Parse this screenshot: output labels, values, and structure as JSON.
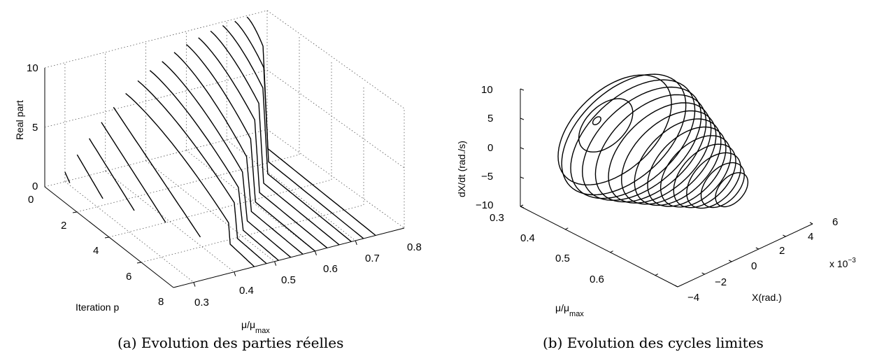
{
  "chart_data": [
    {
      "type": "line",
      "subtype": "3d-waterfall",
      "caption": "(a) Evolution des parties réelles",
      "xlabel": "Iteration p",
      "ylabel_main": "μ/μ",
      "ylabel_sub": "max",
      "zlabel": "Real part",
      "xlim": [
        0,
        8
      ],
      "ylim": [
        0.25,
        0.8
      ],
      "zlim": [
        0,
        10
      ],
      "xticks": [
        "0",
        "2",
        "4",
        "6",
        "8"
      ],
      "yticks": [
        "0.3",
        "0.4",
        "0.5",
        "0.6",
        "0.7",
        "0.8"
      ],
      "zticks": [
        "0",
        "5",
        "10"
      ],
      "grid": true,
      "series": [
        {
          "mu": 0.3,
          "p": [
            0.0,
            0.3
          ],
          "real": [
            0.8,
            0.2
          ]
        },
        {
          "mu": 0.33,
          "p": [
            0.0,
            1.6
          ],
          "real": [
            2.0,
            0.0
          ]
        },
        {
          "mu": 0.36,
          "p": [
            0.0,
            2.8
          ],
          "real": [
            3.1,
            0.0
          ]
        },
        {
          "mu": 0.39,
          "p": [
            0.0,
            4.0
          ],
          "real": [
            4.2,
            0.0
          ]
        },
        {
          "mu": 0.42,
          "p": [
            0.0,
            5.4
          ],
          "real": [
            5.2,
            0.0
          ]
        },
        {
          "mu": 0.45,
          "p": [
            0.0,
            6.4,
            6.5,
            8.0
          ],
          "real": [
            6.1,
            2.0,
            0.3,
            0.0
          ]
        },
        {
          "mu": 0.48,
          "p": [
            0.0,
            6.0,
            6.2,
            8.0
          ],
          "real": [
            6.9,
            3.0,
            0.2,
            0.0
          ]
        },
        {
          "mu": 0.51,
          "p": [
            0.0,
            5.5,
            5.8,
            8.0
          ],
          "real": [
            7.5,
            3.5,
            0.2,
            0.0
          ]
        },
        {
          "mu": 0.54,
          "p": [
            0.0,
            5.0,
            5.3,
            8.0
          ],
          "real": [
            8.0,
            4.0,
            0.2,
            0.0
          ]
        },
        {
          "mu": 0.57,
          "p": [
            0.0,
            4.5,
            4.8,
            8.0
          ],
          "real": [
            8.5,
            4.5,
            0.2,
            0.0
          ]
        },
        {
          "mu": 0.6,
          "p": [
            0.0,
            4.0,
            4.3,
            8.0
          ],
          "real": [
            8.9,
            5.2,
            0.2,
            0.0
          ]
        },
        {
          "mu": 0.63,
          "p": [
            0.0,
            3.5,
            3.8,
            8.0
          ],
          "real": [
            9.2,
            6.0,
            0.2,
            0.0
          ]
        },
        {
          "mu": 0.66,
          "p": [
            0.0,
            3.0,
            3.3,
            8.0
          ],
          "real": [
            9.5,
            6.6,
            0.2,
            0.0
          ]
        },
        {
          "mu": 0.69,
          "p": [
            0.0,
            2.5,
            2.8,
            8.0
          ],
          "real": [
            9.7,
            7.1,
            0.2,
            0.0
          ]
        },
        {
          "mu": 0.72,
          "p": [
            0.0,
            1.8,
            2.1,
            8.0
          ],
          "real": [
            9.8,
            7.8,
            0.2,
            0.0
          ]
        },
        {
          "mu": 0.75,
          "p": [
            0.0,
            1.0,
            1.3,
            8.0
          ],
          "real": [
            9.9,
            8.5,
            0.2,
            0.0
          ]
        }
      ]
    },
    {
      "type": "line",
      "subtype": "3d-phase-portrait",
      "caption": "(b) Evolution des cycles limites",
      "xlabel": "X(rad.)",
      "x_multiplier": "x 10",
      "x_exponent": "−3",
      "ylabel_main": "μ/μ",
      "ylabel_sub": "max",
      "zlabel": "dX/dt (rad./s)",
      "xlim": [
        -4,
        6
      ],
      "ylim": [
        0.3,
        0.65
      ],
      "zlim": [
        -10,
        10
      ],
      "xticks": [
        "−4",
        "−2",
        "0",
        "2",
        "4",
        "6"
      ],
      "yticks": [
        "0.3",
        "0.4",
        "0.5",
        "0.6"
      ],
      "zticks": [
        "10",
        "5",
        "0",
        "−5",
        "−10"
      ],
      "grid": false,
      "series": [
        {
          "mu": 0.32,
          "x_amp": 0.3,
          "v_amp": 0.6
        },
        {
          "mu": 0.34,
          "x_amp": 2.0,
          "v_amp": 4.0
        },
        {
          "mu": 0.36,
          "x_amp": 4.2,
          "v_amp": 8.2
        },
        {
          "mu": 0.38,
          "x_amp": 4.6,
          "v_amp": 9.0
        },
        {
          "mu": 0.4,
          "x_amp": 4.6,
          "v_amp": 8.8
        },
        {
          "mu": 0.42,
          "x_amp": 4.4,
          "v_amp": 8.4
        },
        {
          "mu": 0.44,
          "x_amp": 4.1,
          "v_amp": 8.0
        },
        {
          "mu": 0.46,
          "x_amp": 3.8,
          "v_amp": 7.5
        },
        {
          "mu": 0.48,
          "x_amp": 3.5,
          "v_amp": 7.0
        },
        {
          "mu": 0.5,
          "x_amp": 3.2,
          "v_amp": 6.5
        },
        {
          "mu": 0.52,
          "x_amp": 2.9,
          "v_amp": 6.0
        },
        {
          "mu": 0.54,
          "x_amp": 2.6,
          "v_amp": 5.4
        },
        {
          "mu": 0.56,
          "x_amp": 2.3,
          "v_amp": 4.8
        },
        {
          "mu": 0.58,
          "x_amp": 2.0,
          "v_amp": 4.2
        },
        {
          "mu": 0.6,
          "x_amp": 1.6,
          "v_amp": 3.4
        },
        {
          "mu": 0.62,
          "x_amp": 1.2,
          "v_amp": 2.6
        }
      ]
    }
  ]
}
